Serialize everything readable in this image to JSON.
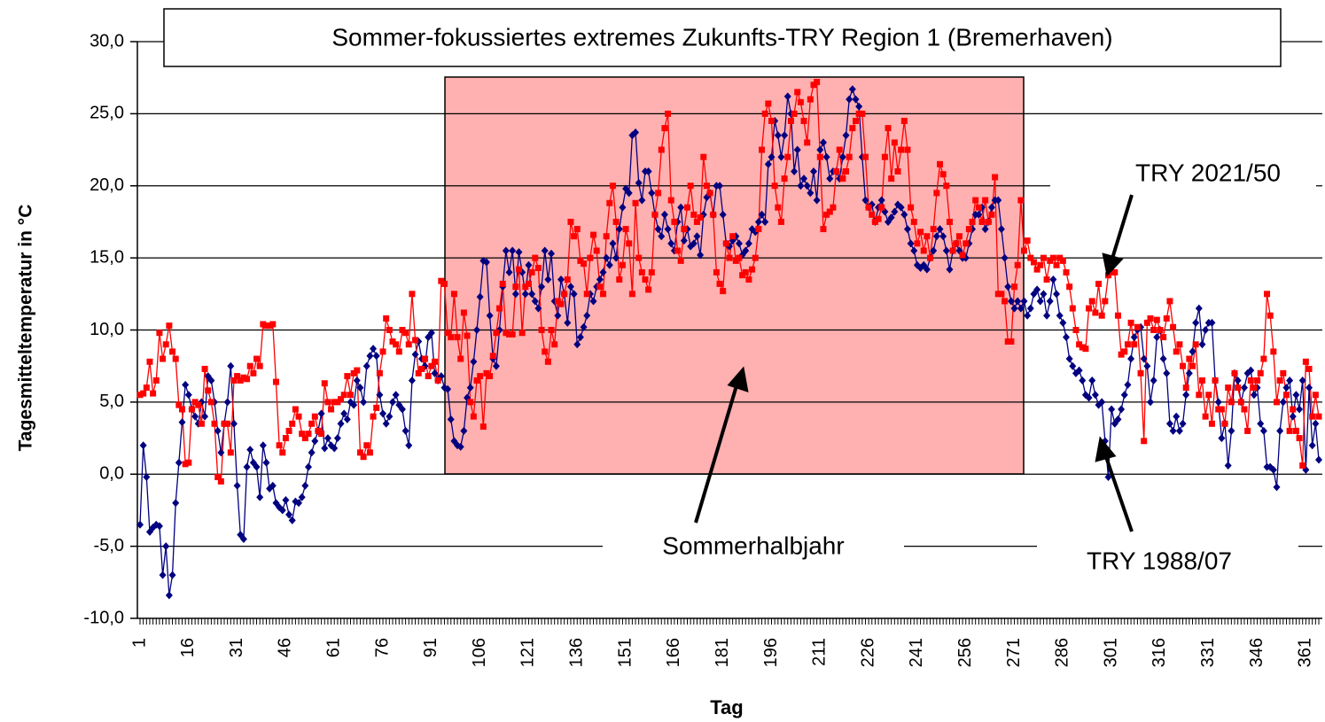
{
  "chart_data": {
    "type": "line",
    "title": "Sommer-fokussiertes extremes Zukunfts-TRY Region 1 (Bremerhaven)",
    "x_label": "Tag",
    "y_label": "Tagesmitteltemperatur in °C",
    "annotations": [
      "Sommerhalbjahr",
      "TRY 2021/50",
      "TRY 1988/07"
    ],
    "ylim": [
      -10,
      30
    ],
    "yticks": [
      {
        "value": -10,
        "label": "-10,0"
      },
      {
        "value": -5,
        "label": "-5,0"
      },
      {
        "value": 0,
        "label": "0,0"
      },
      {
        "value": 5,
        "label": "5,0"
      },
      {
        "value": 10,
        "label": "10,0"
      },
      {
        "value": 15,
        "label": "15,0"
      },
      {
        "value": 20,
        "label": "20,0"
      },
      {
        "value": 25,
        "label": "25,0"
      },
      {
        "value": 30,
        "label": "30,0"
      }
    ],
    "grid": true,
    "categories": [
      "1",
      null,
      null,
      null,
      null,
      null,
      null,
      null,
      null,
      null,
      null,
      null,
      null,
      null,
      null,
      "16",
      null,
      null,
      null,
      null,
      null,
      null,
      null,
      null,
      null,
      null,
      null,
      null,
      null,
      null,
      "31",
      null,
      null,
      null,
      null,
      null,
      null,
      null,
      null,
      null,
      null,
      null,
      null,
      null,
      null,
      "46",
      null,
      null,
      null,
      null,
      null,
      null,
      null,
      null,
      null,
      null,
      null,
      null,
      null,
      null,
      "61",
      null,
      null,
      null,
      null,
      null,
      null,
      null,
      null,
      null,
      null,
      null,
      null,
      null,
      null,
      "76",
      null,
      null,
      null,
      null,
      null,
      null,
      null,
      null,
      null,
      null,
      null,
      null,
      null,
      null,
      "91",
      null,
      null,
      null,
      null,
      null,
      null,
      null,
      null,
      null,
      null,
      null,
      null,
      null,
      null,
      "106",
      null,
      null,
      null,
      null,
      null,
      null,
      null,
      null,
      null,
      null,
      null,
      null,
      null,
      null,
      "121",
      null,
      null,
      null,
      null,
      null,
      null,
      null,
      null,
      null,
      null,
      null,
      null,
      null,
      null,
      "136",
      null,
      null,
      null,
      null,
      null,
      null,
      null,
      null,
      null,
      null,
      null,
      null,
      null,
      null,
      "151",
      null,
      null,
      null,
      null,
      null,
      null,
      null,
      null,
      null,
      null,
      null,
      null,
      null,
      null,
      "166",
      null,
      null,
      null,
      null,
      null,
      null,
      null,
      null,
      null,
      null,
      null,
      null,
      null,
      null,
      "181",
      null,
      null,
      null,
      null,
      null,
      null,
      null,
      null,
      null,
      null,
      null,
      null,
      null,
      null,
      "196",
      null,
      null,
      null,
      null,
      null,
      null,
      null,
      null,
      null,
      null,
      null,
      null,
      null,
      null,
      "211",
      null,
      null,
      null,
      null,
      null,
      null,
      null,
      null,
      null,
      null,
      null,
      null,
      null,
      null,
      "226",
      null,
      null,
      null,
      null,
      null,
      null,
      null,
      null,
      null,
      null,
      null,
      null,
      null,
      null,
      "241",
      null,
      null,
      null,
      null,
      null,
      null,
      null,
      null,
      null,
      null,
      null,
      null,
      null,
      null,
      "256",
      null,
      null,
      null,
      null,
      null,
      null,
      null,
      null,
      null,
      null,
      null,
      null,
      null,
      null,
      "271",
      null,
      null,
      null,
      null,
      null,
      null,
      null,
      null,
      null,
      null,
      null,
      null,
      null,
      null,
      "286",
      null,
      null,
      null,
      null,
      null,
      null,
      null,
      null,
      null,
      null,
      null,
      null,
      null,
      null,
      "301",
      null,
      null,
      null,
      null,
      null,
      null,
      null,
      null,
      null,
      null,
      null,
      null,
      null,
      null,
      "316",
      null,
      null,
      null,
      null,
      null,
      null,
      null,
      null,
      null,
      null,
      null,
      null,
      null,
      null,
      "331",
      null,
      null,
      null,
      null,
      null,
      null,
      null,
      null,
      null,
      null,
      null,
      null,
      null,
      null,
      "346",
      null,
      null,
      null,
      null,
      null,
      null,
      null,
      null,
      null,
      null,
      null,
      null,
      null,
      null,
      "361",
      null,
      null,
      null,
      null
    ],
    "series": [
      {
        "name": "TRY 1988/07",
        "color": "#000080",
        "marker": "diamond",
        "values": [
          -3.5,
          2,
          -0.2,
          -4,
          -3.7,
          -3.5,
          -3.6,
          -7,
          -5,
          -8.4,
          -7,
          -2,
          0.8,
          3.6,
          6.2,
          5.5,
          4.5,
          4,
          3.5,
          5,
          4,
          6.8,
          6.5,
          5,
          3,
          1.5,
          3.5,
          5,
          7.5,
          3.5,
          -0.8,
          -4.2,
          -4.5,
          0.5,
          1.7,
          0.8,
          0.5,
          -1.6,
          2,
          0.8,
          -1,
          -0.8,
          -2,
          -2.3,
          -2.5,
          -1.8,
          -2.8,
          -3.2,
          -1.9,
          -2,
          -1.6,
          -0.8,
          0.5,
          1.5,
          2.3,
          3,
          4.2,
          1.8,
          2.5,
          2,
          1.8,
          2.5,
          3.5,
          4.2,
          3.8,
          5,
          4.8,
          6.5,
          6,
          5,
          7.5,
          8.2,
          8.7,
          8.2,
          5.5,
          4.2,
          3.5,
          4,
          5,
          5.5,
          4.8,
          4.5,
          3,
          2,
          6.5,
          8.3,
          9.2,
          8,
          7.5,
          9.5,
          9.8,
          7,
          6.5,
          6.8,
          6,
          5.9,
          3.8,
          2.3,
          2,
          1.9,
          3,
          5.3,
          6,
          7.8,
          10,
          12.3,
          14.8,
          14.7,
          11,
          8,
          7.5,
          10,
          13,
          15.5,
          14,
          15.5,
          12.5,
          15.4,
          14,
          12.5,
          14.5,
          12.5,
          12,
          11.5,
          13,
          15.5,
          13.5,
          15.3,
          12,
          11,
          13.5,
          12.5,
          10.5,
          13,
          12.5,
          9,
          9.5,
          10.2,
          11,
          12.5,
          12,
          13,
          13.5,
          14,
          15,
          14.5,
          16,
          15,
          17,
          18.5,
          19.8,
          19.5,
          23.5,
          23.7,
          20.2,
          19,
          21,
          21,
          19.5,
          18,
          17,
          16.5,
          18,
          17,
          16,
          15.5,
          17.5,
          18.5,
          16.2,
          17,
          15.8,
          16,
          16.5,
          15.2,
          18,
          19.2,
          19.5,
          18,
          20,
          20,
          18,
          16,
          15.8,
          16.2,
          16.5,
          16,
          15.2,
          15.5,
          16,
          17,
          16.8,
          17.5,
          18,
          17.5,
          21.5,
          22,
          24.5,
          23.5,
          22,
          23.5,
          26.2,
          25,
          21,
          22.5,
          20,
          20.5,
          20,
          19.5,
          21,
          19,
          22.5,
          23,
          22,
          20.5,
          21,
          21,
          20.5,
          22,
          23.5,
          26,
          26.7,
          26,
          25.5,
          22,
          19,
          18.5,
          18.7,
          17.5,
          18.5,
          19,
          18.2,
          17.5,
          17.8,
          18.2,
          18.7,
          18.5,
          18,
          17,
          16,
          15.5,
          14.5,
          14.3,
          14.5,
          14.2,
          15,
          15.5,
          16.5,
          17,
          16.5,
          15.5,
          14.2,
          15.5,
          16,
          15.5,
          15,
          15,
          16,
          17,
          18,
          18,
          18.5,
          17,
          17.5,
          18.5,
          19,
          19,
          17,
          15,
          13,
          12,
          11.5,
          12,
          11.5,
          12,
          11,
          11.5,
          12.5,
          12.8,
          12,
          12.5,
          11,
          12,
          13.5,
          12.5,
          11,
          10.5,
          9.5,
          8,
          7.5,
          7,
          7.2,
          6.5,
          5.5,
          5.3,
          6.5,
          5.5,
          4.8,
          5,
          2.3,
          -0.2,
          4.5,
          3.5,
          3.8,
          4.5,
          5.5,
          6.2,
          8,
          9.5,
          10,
          10.2,
          8,
          7.5,
          5,
          6.5,
          9.5,
          10,
          8,
          7,
          3.5,
          3,
          4,
          3,
          3.5,
          5.5,
          7,
          8.5,
          10.5,
          11.5,
          9,
          10,
          10.5,
          10.5,
          6.5,
          5,
          2.5,
          3.5,
          0.6,
          3,
          7,
          6.5,
          5,
          6,
          7,
          7.2,
          5.5,
          6,
          3.5,
          3,
          0.5,
          0.5,
          0.3,
          -0.9,
          3,
          5,
          6,
          6.5,
          4,
          5.5,
          4.5,
          6.5,
          0.3,
          6,
          2,
          3.5,
          1
        ]
      },
      {
        "name": "TRY 2021/50",
        "color": "#ff0000",
        "marker": "square",
        "values": [
          5.5,
          5.6,
          6,
          7.8,
          5.6,
          6.5,
          9.8,
          8,
          9,
          10.3,
          8.5,
          8,
          4.8,
          4.5,
          0.7,
          0.8,
          4.5,
          5,
          4.8,
          3.5,
          7.3,
          5.8,
          5,
          3.5,
          -0.2,
          -0.5,
          3.5,
          3.5,
          1.5,
          6.5,
          6.8,
          6.5,
          6.7,
          6.6,
          7.5,
          7,
          8,
          7.5,
          10.4,
          10.3,
          10.3,
          10.4,
          6.4,
          2,
          1.5,
          2.5,
          3,
          3.5,
          4.5,
          4,
          2.8,
          2.5,
          2.8,
          3.5,
          4,
          3,
          2.8,
          6.3,
          5,
          4.5,
          5,
          5,
          5.2,
          5.5,
          6.8,
          5.5,
          7,
          7.2,
          1.5,
          1.2,
          2,
          1.5,
          4,
          4.6,
          7,
          8.5,
          10.8,
          10,
          9.2,
          9,
          8.5,
          10,
          9.8,
          9,
          12.5,
          9.3,
          7,
          7.3,
          8,
          6.8,
          7.5,
          7.8,
          6.5,
          13.4,
          13.2,
          9.8,
          9.5,
          12.5,
          9.5,
          8,
          11.2,
          9.6,
          5,
          4,
          6.5,
          6.8,
          3.3,
          7,
          6.8,
          8.2,
          9.8,
          11.5,
          13.2,
          9.8,
          9.7,
          9.7,
          13,
          14.2,
          9.8,
          13,
          13.2,
          14,
          15,
          14.3,
          10,
          8.5,
          7.8,
          10,
          9,
          12,
          11.8,
          12.5,
          13.5,
          17.5,
          16.5,
          17,
          14.8,
          14.6,
          12.5,
          15,
          16.6,
          15.5,
          13,
          12.5,
          16.5,
          18.8,
          20,
          17.5,
          13.5,
          14.5,
          17,
          16,
          12.5,
          18.8,
          15,
          14,
          13.5,
          12.8,
          14,
          18,
          19.5,
          22.5,
          24,
          25,
          19,
          17.5,
          15.5,
          14.8,
          17,
          18.5,
          20,
          18,
          17.5,
          17.8,
          22,
          20,
          19.5,
          18,
          14,
          13.2,
          12.7,
          16,
          15,
          16.5,
          14.8,
          15,
          13.8,
          14,
          13.5,
          14.2,
          15,
          17,
          22.5,
          25,
          25.7,
          24.5,
          20,
          18.5,
          17.5,
          20.5,
          22,
          24.5,
          25,
          26.5,
          25.8,
          24.5,
          23,
          26,
          27,
          27.2,
          22,
          17,
          18,
          18.2,
          18.5,
          21,
          22.5,
          20.5,
          21,
          22,
          24,
          24.5,
          25,
          25,
          22,
          18.5,
          18,
          17.5,
          17.7,
          18.5,
          22,
          24,
          20.5,
          23,
          21,
          22.5,
          24.5,
          22.5,
          18.5,
          17.5,
          16,
          16.8,
          15.5,
          16.5,
          15,
          17,
          19.5,
          21.5,
          20.8,
          20,
          17.5,
          15.5,
          16,
          16.5,
          15.2,
          16,
          17,
          17.5,
          19,
          18.5,
          17.5,
          19,
          17.5,
          18,
          20.6,
          12.5,
          12.5,
          12,
          9.2,
          9.2,
          13,
          14.5,
          19,
          15.5,
          16.2,
          15,
          14.7,
          14.2,
          14.5,
          15,
          13.5,
          14.8,
          15,
          14.5,
          15,
          14.8,
          14,
          13,
          11.5,
          10,
          9,
          8.8,
          8.7,
          11.5,
          12,
          11.2,
          13.2,
          11,
          12,
          13.8,
          14,
          14,
          11,
          8.3,
          8.5,
          9,
          10.5,
          9,
          10.2,
          7,
          2.3,
          10.5,
          10.8,
          10,
          10.7,
          10,
          9.5,
          10.8,
          12,
          10.2,
          8.5,
          9,
          7.5,
          6,
          8,
          7.5,
          9,
          5.5,
          6.5,
          4,
          5.5,
          3.5,
          6.5,
          4.5,
          4.5,
          3.5,
          6,
          5,
          7,
          6,
          5,
          4.5,
          3,
          6.5,
          6,
          6.5,
          7,
          8,
          12.5,
          11,
          8.5,
          5,
          6.5,
          7,
          5.5,
          3,
          4.5,
          3,
          2.5,
          0.6,
          7.8,
          7.3,
          4,
          5.5,
          4
        ]
      }
    ]
  }
}
